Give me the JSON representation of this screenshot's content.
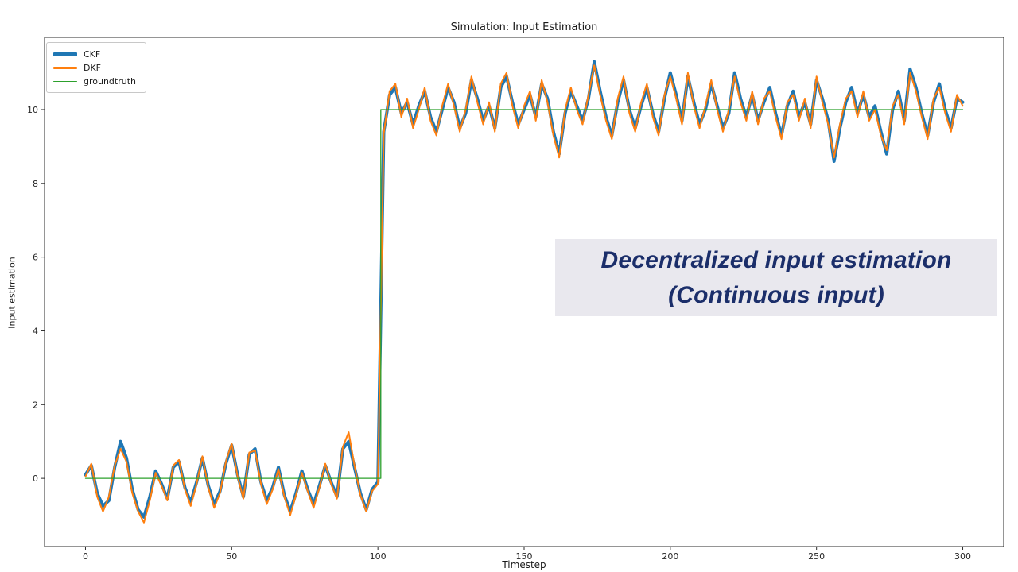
{
  "figure": {
    "title": "Simulation: Input Estimation",
    "xlabel": "Timestep",
    "ylabel": "Input estimation"
  },
  "legend": {
    "items": [
      {
        "label": "CKF",
        "color": "#1f77b4",
        "thickness": 5
      },
      {
        "label": "DKF",
        "color": "#ff7f0e",
        "thickness": 3
      },
      {
        "label": "groundtruth",
        "color": "#2ca02c",
        "thickness": 1.5
      }
    ]
  },
  "overlay": {
    "line1": "Decentralized input estimation",
    "line2": "(Continuous input)",
    "text_color": "#1b2e6a",
    "bg_color": "#e9e8ee"
  },
  "chart_data": {
    "type": "line",
    "title": "Simulation: Input Estimation",
    "xlabel": "Timestep",
    "ylabel": "Input estimation",
    "xlim": [
      -14,
      314
    ],
    "ylim": [
      -1.85,
      11.96
    ],
    "x_ticks": [
      0,
      50,
      100,
      150,
      200,
      250,
      300
    ],
    "y_ticks": [
      0,
      2,
      4,
      6,
      8,
      10
    ],
    "grid": false,
    "legend_position": "upper left",
    "spine_color": "#2b2b2b",
    "tick_label_color": "#262626",
    "x": [
      0,
      2,
      4,
      6,
      8,
      10,
      12,
      14,
      16,
      18,
      20,
      22,
      24,
      26,
      28,
      30,
      32,
      34,
      36,
      38,
      40,
      42,
      44,
      46,
      48,
      50,
      52,
      54,
      56,
      58,
      60,
      62,
      64,
      66,
      68,
      70,
      72,
      74,
      76,
      78,
      80,
      82,
      84,
      86,
      88,
      90,
      92,
      94,
      96,
      98,
      100,
      102,
      104,
      106,
      108,
      110,
      112,
      114,
      116,
      118,
      120,
      122,
      124,
      126,
      128,
      130,
      132,
      134,
      136,
      138,
      140,
      142,
      144,
      146,
      148,
      150,
      152,
      154,
      156,
      158,
      160,
      162,
      164,
      166,
      168,
      170,
      172,
      174,
      176,
      178,
      180,
      182,
      184,
      186,
      188,
      190,
      192,
      194,
      196,
      198,
      200,
      202,
      204,
      206,
      208,
      210,
      212,
      214,
      216,
      218,
      220,
      222,
      224,
      226,
      228,
      230,
      232,
      234,
      236,
      238,
      240,
      242,
      244,
      246,
      248,
      250,
      252,
      254,
      256,
      258,
      260,
      262,
      264,
      266,
      268,
      270,
      272,
      274,
      276,
      278,
      280,
      282,
      284,
      286,
      288,
      290,
      292,
      294,
      296,
      298,
      300
    ],
    "series": [
      {
        "name": "CKF",
        "color": "#1f77b4",
        "linewidth": 4,
        "y": [
          0.1,
          0.35,
          -0.4,
          -0.75,
          -0.6,
          0.3,
          1.0,
          0.55,
          -0.3,
          -0.85,
          -1.05,
          -0.5,
          0.2,
          -0.15,
          -0.55,
          0.3,
          0.45,
          -0.25,
          -0.65,
          -0.1,
          0.55,
          -0.2,
          -0.7,
          -0.35,
          0.4,
          0.9,
          0.1,
          -0.5,
          0.65,
          0.8,
          -0.1,
          -0.6,
          -0.25,
          0.3,
          -0.45,
          -0.9,
          -0.4,
          0.2,
          -0.3,
          -0.7,
          -0.2,
          0.35,
          -0.1,
          -0.5,
          0.8,
          1.0,
          0.3,
          -0.4,
          -0.85,
          -0.3,
          -0.1,
          9.4,
          10.4,
          10.6,
          9.9,
          10.2,
          9.6,
          10.1,
          10.5,
          9.8,
          9.4,
          10.0,
          10.6,
          10.2,
          9.5,
          9.9,
          10.8,
          10.3,
          9.7,
          10.1,
          9.5,
          10.6,
          10.9,
          10.2,
          9.6,
          10.0,
          10.4,
          9.8,
          10.7,
          10.3,
          9.4,
          8.8,
          9.9,
          10.5,
          10.1,
          9.7,
          10.3,
          11.3,
          10.5,
          9.8,
          9.3,
          10.2,
          10.8,
          10.0,
          9.5,
          10.1,
          10.6,
          9.9,
          9.4,
          10.3,
          11.0,
          10.4,
          9.7,
          10.9,
          10.2,
          9.6,
          10.0,
          10.7,
          10.1,
          9.5,
          9.9,
          11.0,
          10.3,
          9.8,
          10.4,
          9.7,
          10.2,
          10.6,
          9.9,
          9.3,
          10.1,
          10.5,
          9.8,
          10.2,
          9.6,
          10.8,
          10.3,
          9.7,
          8.6,
          9.5,
          10.2,
          10.6,
          9.9,
          10.4,
          9.8,
          10.1,
          9.4,
          8.8,
          10.0,
          10.5,
          9.7,
          11.1,
          10.6,
          9.9,
          9.3,
          10.2,
          10.7,
          10.0,
          9.5,
          10.3,
          10.2
        ]
      },
      {
        "name": "DKF",
        "color": "#ff7f0e",
        "linewidth": 2,
        "y": [
          0.05,
          0.4,
          -0.5,
          -0.9,
          -0.5,
          0.35,
          0.8,
          0.45,
          -0.4,
          -0.9,
          -1.2,
          -0.6,
          0.15,
          -0.2,
          -0.6,
          0.35,
          0.5,
          -0.3,
          -0.75,
          -0.15,
          0.6,
          -0.25,
          -0.8,
          -0.4,
          0.45,
          0.95,
          0.05,
          -0.55,
          0.7,
          0.75,
          -0.15,
          -0.7,
          -0.3,
          0.25,
          -0.5,
          -1.0,
          -0.45,
          0.15,
          -0.35,
          -0.8,
          -0.25,
          0.4,
          -0.15,
          -0.55,
          0.85,
          1.25,
          0.35,
          -0.45,
          -0.9,
          -0.35,
          -0.15,
          9.35,
          10.5,
          10.7,
          9.8,
          10.3,
          9.5,
          10.0,
          10.6,
          9.7,
          9.3,
          10.1,
          10.7,
          10.1,
          9.4,
          10.0,
          10.9,
          10.2,
          9.6,
          10.2,
          9.4,
          10.7,
          11.0,
          10.1,
          9.5,
          10.1,
          10.5,
          9.7,
          10.8,
          10.2,
          9.3,
          8.7,
          10.0,
          10.6,
          10.0,
          9.6,
          10.4,
          11.2,
          10.4,
          9.7,
          9.2,
          10.3,
          10.9,
          9.9,
          9.4,
          10.2,
          10.7,
          9.8,
          9.3,
          10.4,
          10.9,
          10.3,
          9.6,
          11.0,
          10.1,
          9.5,
          10.1,
          10.8,
          10.0,
          9.4,
          10.0,
          10.9,
          10.2,
          9.7,
          10.5,
          9.6,
          10.3,
          10.5,
          9.8,
          9.2,
          10.2,
          10.4,
          9.7,
          10.3,
          9.5,
          10.9,
          10.2,
          9.6,
          8.7,
          9.6,
          10.3,
          10.5,
          9.8,
          10.5,
          9.7,
          10.0,
          9.3,
          8.9,
          10.1,
          10.4,
          9.6,
          11.0,
          10.5,
          9.8,
          9.2,
          10.3,
          10.6,
          9.9,
          9.4,
          10.4,
          10.1
        ]
      },
      {
        "name": "groundtruth",
        "color": "#2ca02c",
        "linewidth": 1.3,
        "x": [
          0,
          101,
          101,
          300
        ],
        "y": [
          0,
          0,
          10,
          10
        ]
      }
    ]
  }
}
